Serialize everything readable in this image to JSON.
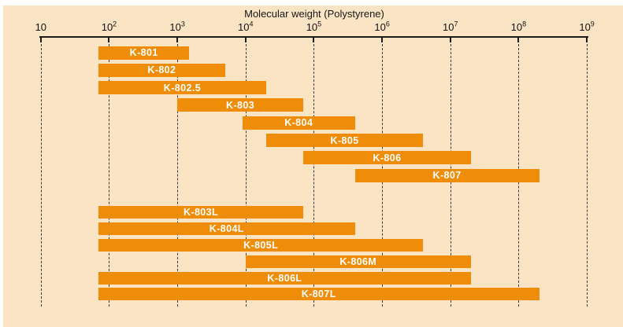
{
  "page": {
    "background": "#ffffff",
    "panel_background": "#fae4c4"
  },
  "chart_data": {
    "type": "bar",
    "orientation": "horizontal-range",
    "title": "Molecular weight (Polystyrene)",
    "x_axis": {
      "scale": "log10",
      "min": 10,
      "max": 1000000000,
      "ticks": [
        {
          "text": "10",
          "sup": ""
        },
        {
          "text": "10",
          "sup": "2"
        },
        {
          "text": "10",
          "sup": "3"
        },
        {
          "text": "10",
          "sup": "4"
        },
        {
          "text": "10",
          "sup": "5"
        },
        {
          "text": "10",
          "sup": "6"
        },
        {
          "text": "10",
          "sup": "7"
        },
        {
          "text": "10",
          "sup": "8"
        },
        {
          "text": "10",
          "sup": "9"
        }
      ],
      "gridlines": "dashed"
    },
    "bar_color": "#ef8c08",
    "bar_label_color": "#ffffff",
    "legend": "none",
    "groups": [
      {
        "bars": [
          {
            "label": "K-801",
            "mw_min": 70,
            "mw_max": 1500
          },
          {
            "label": "K-802",
            "mw_min": 70,
            "mw_max": 5000
          },
          {
            "label": "K-802.5",
            "mw_min": 70,
            "mw_max": 20000
          },
          {
            "label": "K-803",
            "mw_min": 1000,
            "mw_max": 70000
          },
          {
            "label": "K-804",
            "mw_min": 9000,
            "mw_max": 400000
          },
          {
            "label": "K-805",
            "mw_min": 20000,
            "mw_max": 4000000
          },
          {
            "label": "K-806",
            "mw_min": 70000,
            "mw_max": 20000000
          },
          {
            "label": "K-807",
            "mw_min": 400000,
            "mw_max": 200000000
          }
        ]
      },
      {
        "bars": [
          {
            "label": "K-803L",
            "mw_min": 70,
            "mw_max": 70000
          },
          {
            "label": "K-804L",
            "mw_min": 70,
            "mw_max": 400000
          },
          {
            "label": "K-805L",
            "mw_min": 70,
            "mw_max": 4000000
          },
          {
            "label": "K-806M",
            "mw_min": 10000,
            "mw_max": 20000000
          },
          {
            "label": "K-806L",
            "mw_min": 70,
            "mw_max": 20000000
          },
          {
            "label": "K-807L",
            "mw_min": 70,
            "mw_max": 200000000
          }
        ]
      }
    ]
  }
}
